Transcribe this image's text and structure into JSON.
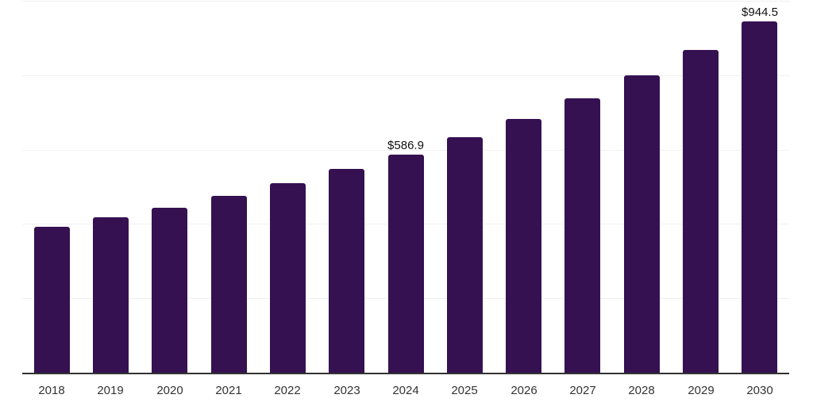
{
  "chart_data": {
    "type": "bar",
    "title": "",
    "xlabel": "",
    "ylabel": "",
    "categories": [
      "2018",
      "2019",
      "2020",
      "2021",
      "2022",
      "2023",
      "2024",
      "2025",
      "2026",
      "2027",
      "2028",
      "2029",
      "2030"
    ],
    "values": [
      392,
      418,
      444,
      476,
      509,
      547,
      586.9,
      633,
      682,
      737,
      799,
      867,
      944.5
    ],
    "data_labels": [
      "",
      "",
      "",
      "",
      "",
      "",
      "$586.9",
      "",
      "",
      "",
      "",
      "",
      "$944.5"
    ],
    "ylim": [
      0,
      1000
    ],
    "grid": true,
    "gridline_values": [
      200,
      400,
      600,
      800,
      1000
    ],
    "legend": false,
    "colors": {
      "bar": "#351151",
      "gridline": "#f0f0f0",
      "axis_line": "#333333",
      "tick_label": "#333333",
      "data_label": "#111111",
      "background": "#ffffff"
    }
  }
}
